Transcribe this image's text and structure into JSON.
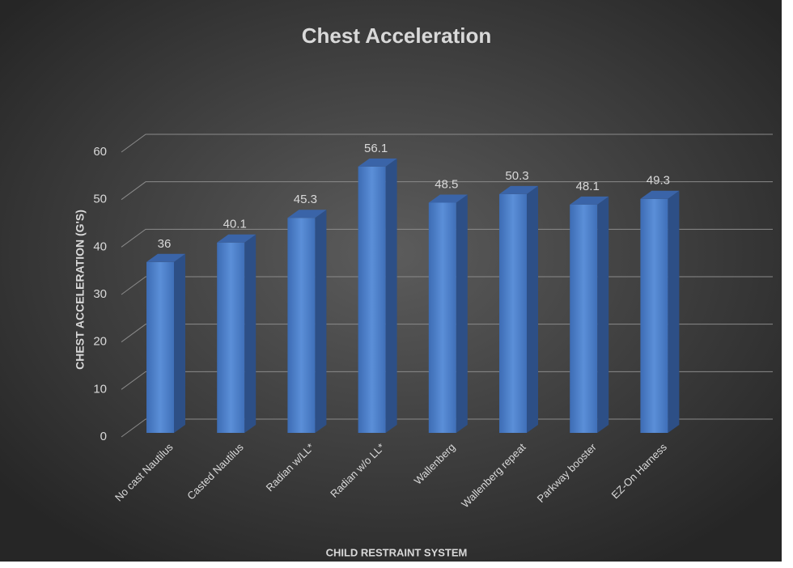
{
  "chart_data": {
    "type": "bar3d",
    "title": "Chest Acceleration",
    "xlabel": "CHILD RESTRAINT SYSTEM",
    "ylabel": "CHEST ACCELERATION (G'S)",
    "categories": [
      "No cast Nautilus",
      "Casted Nautilus",
      "Radian w/LL*",
      "Radian w/o LL*",
      "Wallenberg",
      "Wallenberg repeat",
      "Parkway booster",
      "EZ-On  Harness"
    ],
    "values": [
      36,
      40.1,
      45.3,
      56.1,
      48.5,
      50.3,
      48.1,
      49.3
    ],
    "color": "#4a7cc4",
    "ylim": [
      0,
      60
    ],
    "yticks": [
      0,
      10,
      20,
      30,
      40,
      50,
      60
    ],
    "grid": true
  }
}
